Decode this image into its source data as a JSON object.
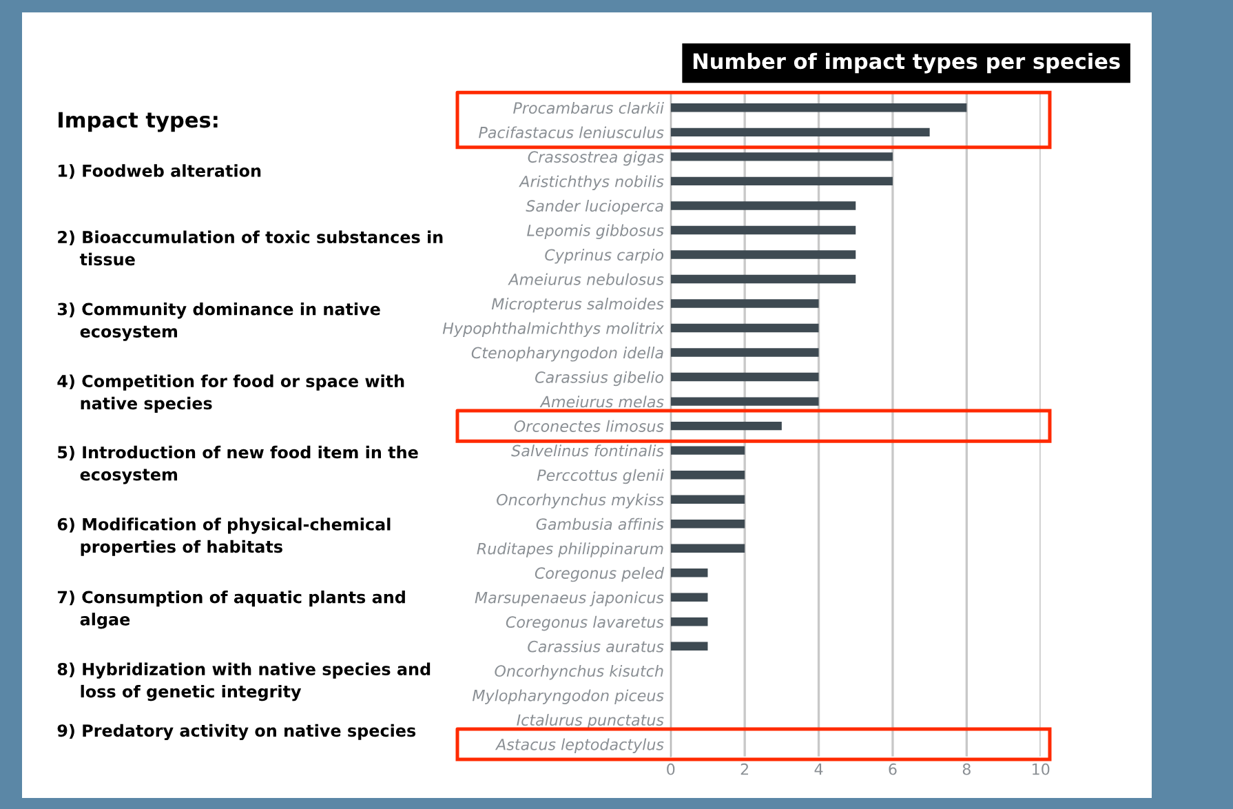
{
  "chart_data": {
    "type": "bar",
    "orientation": "horizontal",
    "title": "Number of impact types per species",
    "categories": [
      "Procambarus clarkii",
      "Pacifastacus leniusculus",
      "Crassostrea gigas",
      "Aristichthys nobilis",
      "Sander lucioperca",
      "Lepomis gibbosus",
      "Cyprinus carpio",
      "Ameiurus nebulosus",
      "Micropterus salmoides",
      "Hypophthalmichthys molitrix",
      "Ctenopharyngodon idella",
      "Carassius gibelio",
      "Ameiurus melas",
      "Orconectes limosus",
      "Salvelinus fontinalis",
      "Perccottus glenii",
      "Oncorhynchus mykiss",
      "Gambusia affinis",
      "Ruditapes philippinarum",
      "Coregonus peled",
      "Marsupenaeus japonicus",
      "Coregonus lavaretus",
      "Carassius auratus",
      "Oncorhynchus kisutch",
      "Mylopharyngodon piceus",
      "Ictalurus punctatus",
      "Astacus leptodactylus"
    ],
    "values": [
      8,
      7,
      6,
      6,
      5,
      5,
      5,
      5,
      4,
      4,
      4,
      4,
      4,
      3,
      2,
      2,
      2,
      2,
      2,
      1,
      1,
      1,
      1,
      0,
      0,
      0,
      0
    ],
    "color": "#3e4a52",
    "xlim": [
      0,
      10
    ],
    "xticks": [
      0,
      2,
      4,
      6,
      8,
      10
    ],
    "grid": "x",
    "annotations": [
      "Impact types:",
      "1) Foodweb alteration",
      "2) Bioaccumulation of toxic substances in\n    tissue",
      "3) Community dominance in native\n    ecosystem",
      "4) Competition for food or space with\n    native species",
      "5) Introduction of new food item in the\n    ecosystem",
      "6) Modification of physical-chemical\n    properties of habitats",
      "7) Consumption of aquatic plants and\n    algae",
      "8) Hybridization with native species and\n    loss of genetic integrity",
      "9) Predatory activity on native species"
    ]
  }
}
